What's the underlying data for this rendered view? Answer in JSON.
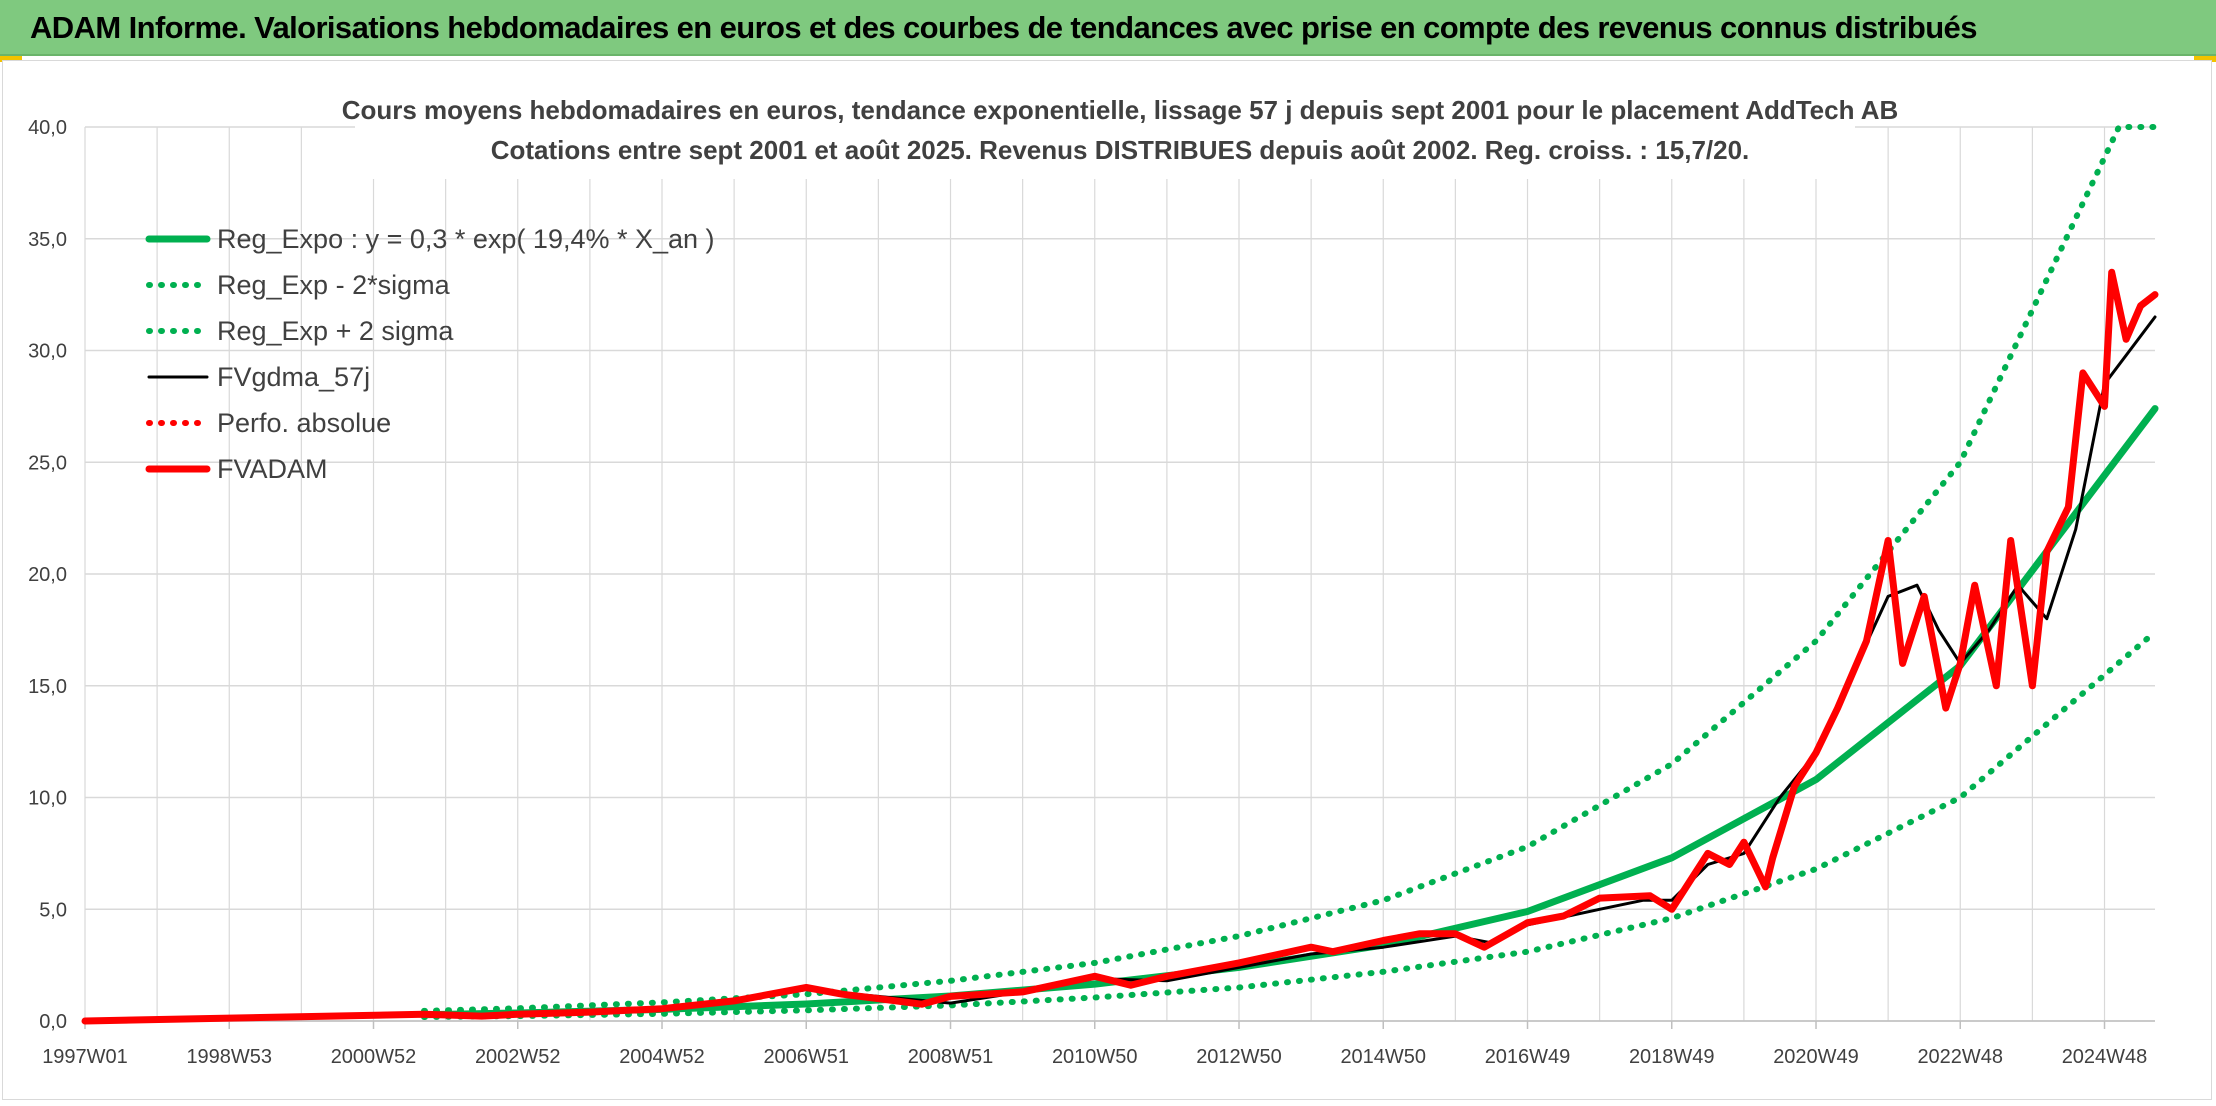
{
  "header": {
    "title": "ADAM Informe. Valorisations hebdomadaires en euros et des courbes de tendances avec prise en compte des revenus connus distribués"
  },
  "colors": {
    "header_bg": "#7fc97f",
    "green": "#00b050",
    "black": "#000000",
    "red": "#ff0000",
    "grid": "#d9d9d9",
    "text": "#404040"
  },
  "chart_data": {
    "type": "line",
    "title_lines": [
      "Cours moyens hebdomadaires en euros, tendance exponentielle, lissage 57 j depuis sept 2001 pour le placement AddTech AB",
      "Cotations entre sept 2001 et août 2025. Revenus DISTRIBUES depuis août 2002. Reg. croiss. : 15,7/20."
    ],
    "xlabel": "",
    "ylabel": "",
    "x_range": [
      1997.0,
      2025.7
    ],
    "ylim": [
      0,
      40
    ],
    "y_ticks": [
      "0,0",
      "5,0",
      "10,0",
      "15,0",
      "20,0",
      "25,0",
      "30,0",
      "35,0",
      "40,0"
    ],
    "x_ticks": [
      {
        "label": "1997W01",
        "x": 1997.0
      },
      {
        "label": "1998W53",
        "x": 1999.0
      },
      {
        "label": "2000W52",
        "x": 2001.0
      },
      {
        "label": "2002W52",
        "x": 2003.0
      },
      {
        "label": "2004W52",
        "x": 2005.0
      },
      {
        "label": "2006W51",
        "x": 2007.0
      },
      {
        "label": "2008W51",
        "x": 2009.0
      },
      {
        "label": "2010W50",
        "x": 2011.0
      },
      {
        "label": "2012W50",
        "x": 2013.0
      },
      {
        "label": "2014W50",
        "x": 2015.0
      },
      {
        "label": "2016W49",
        "x": 2017.0
      },
      {
        "label": "2018W49",
        "x": 2019.0
      },
      {
        "label": "2020W49",
        "x": 2021.0
      },
      {
        "label": "2022W48",
        "x": 2023.0
      },
      {
        "label": "2024W48",
        "x": 2025.0
      }
    ],
    "grid": true,
    "legend_position": "top-left",
    "legend": [
      {
        "label": "Reg_Expo : y = 0,3 * exp( 19,4% *  X_an )",
        "color": "#00b050",
        "style": "solid"
      },
      {
        "label": "Reg_Exp - 2*sigma",
        "color": "#00b050",
        "style": "dotted"
      },
      {
        "label": "Reg_Exp + 2 sigma",
        "color": "#00b050",
        "style": "dotted"
      },
      {
        "label": "FVgdma_57j",
        "color": "#000000",
        "style": "solid-thin"
      },
      {
        "label": "Perfo. absolue",
        "color": "#ff0000",
        "style": "dotted"
      },
      {
        "label": "FVADAM",
        "color": "#ff0000",
        "style": "solid"
      }
    ],
    "series": [
      {
        "name": "Reg_Expo : y = 0,3 * exp( 19,4% *  X_an )",
        "color": "#00b050",
        "style": "solid",
        "x": [
          2001.7,
          2003,
          2005,
          2007,
          2009,
          2011,
          2013,
          2015,
          2017,
          2019,
          2021,
          2023,
          2025.7
        ],
        "y": [
          0.28,
          0.36,
          0.52,
          0.76,
          1.12,
          1.65,
          2.4,
          3.4,
          4.9,
          7.3,
          10.8,
          15.9,
          27.4
        ]
      },
      {
        "name": "Reg_Exp - 2*sigma",
        "color": "#00b050",
        "style": "dotted",
        "x": [
          2001.7,
          2003,
          2005,
          2007,
          2009,
          2011,
          2013,
          2015,
          2017,
          2019,
          2021,
          2023,
          2025.7
        ],
        "y": [
          0.18,
          0.22,
          0.32,
          0.48,
          0.7,
          1.05,
          1.5,
          2.2,
          3.1,
          4.6,
          6.8,
          10.0,
          17.4
        ]
      },
      {
        "name": "Reg_Exp + 2 sigma",
        "color": "#00b050",
        "style": "dotted",
        "x": [
          2001.7,
          2003,
          2005,
          2007,
          2009,
          2011,
          2013,
          2015,
          2017,
          2019,
          2021,
          2023,
          2025.2,
          2025.7
        ],
        "y": [
          0.45,
          0.57,
          0.83,
          1.2,
          1.8,
          2.6,
          3.8,
          5.4,
          7.8,
          11.5,
          17.0,
          25.0,
          40.0,
          40.0
        ]
      },
      {
        "name": "FVgdma_57j",
        "color": "#000000",
        "style": "solid-thin",
        "x": [
          1997.0,
          2001.7,
          2003,
          2005,
          2006,
          2007,
          2008,
          2009,
          2010,
          2011,
          2012,
          2013,
          2014,
          2015,
          2016,
          2016.5,
          2017,
          2018,
          2018.6,
          2019,
          2019.5,
          2020,
          2020.5,
          2021,
          2021.5,
          2022,
          2022.4,
          2022.7,
          2023,
          2023.4,
          2023.8,
          2024.2,
          2024.6,
          2025,
          2025.7
        ],
        "y": [
          0.0,
          0.25,
          0.3,
          0.5,
          0.85,
          1.4,
          1.1,
          0.8,
          1.3,
          1.9,
          1.8,
          2.4,
          3.0,
          3.3,
          3.8,
          3.5,
          4.3,
          5.0,
          5.4,
          5.4,
          7.0,
          7.5,
          10.0,
          12.0,
          15.5,
          19.0,
          19.5,
          17.5,
          16.0,
          17.5,
          19.5,
          18.0,
          22.0,
          28.5,
          31.5
        ]
      },
      {
        "name": "Perfo. absolue",
        "color": "#ff0000",
        "style": "dotted",
        "x": [],
        "y": []
      },
      {
        "name": "FVADAM",
        "color": "#ff0000",
        "style": "solid",
        "x": [
          1997.0,
          2001.7,
          2002.5,
          2003,
          2004,
          2005,
          2006,
          2007,
          2007.5,
          2008,
          2008.6,
          2009,
          2010,
          2011,
          2011.5,
          2012,
          2013,
          2014,
          2014.3,
          2015,
          2015.5,
          2016,
          2016.4,
          2017,
          2017.5,
          2018,
          2018.7,
          2019,
          2019.5,
          2019.8,
          2020,
          2020.3,
          2020.4,
          2020.7,
          2021,
          2021.3,
          2021.7,
          2022,
          2022.2,
          2022.5,
          2022.8,
          2023,
          2023.2,
          2023.5,
          2023.7,
          2024,
          2024.2,
          2024.5,
          2024.7,
          2025,
          2025.1,
          2025.3,
          2025.5,
          2025.7
        ],
        "y": [
          0.0,
          0.3,
          0.22,
          0.3,
          0.4,
          0.55,
          0.9,
          1.5,
          1.2,
          1.0,
          0.75,
          1.1,
          1.3,
          2.0,
          1.6,
          2.0,
          2.6,
          3.3,
          3.1,
          3.6,
          3.9,
          3.9,
          3.3,
          4.4,
          4.7,
          5.5,
          5.6,
          5.0,
          7.5,
          7.0,
          8.0,
          6.0,
          7.3,
          10.5,
          12.0,
          14.0,
          17.0,
          21.5,
          16.0,
          19.0,
          14.0,
          16.0,
          19.5,
          15.0,
          21.5,
          15.0,
          21.0,
          23.0,
          29.0,
          27.5,
          33.5,
          30.5,
          32.0,
          32.5
        ]
      }
    ]
  }
}
